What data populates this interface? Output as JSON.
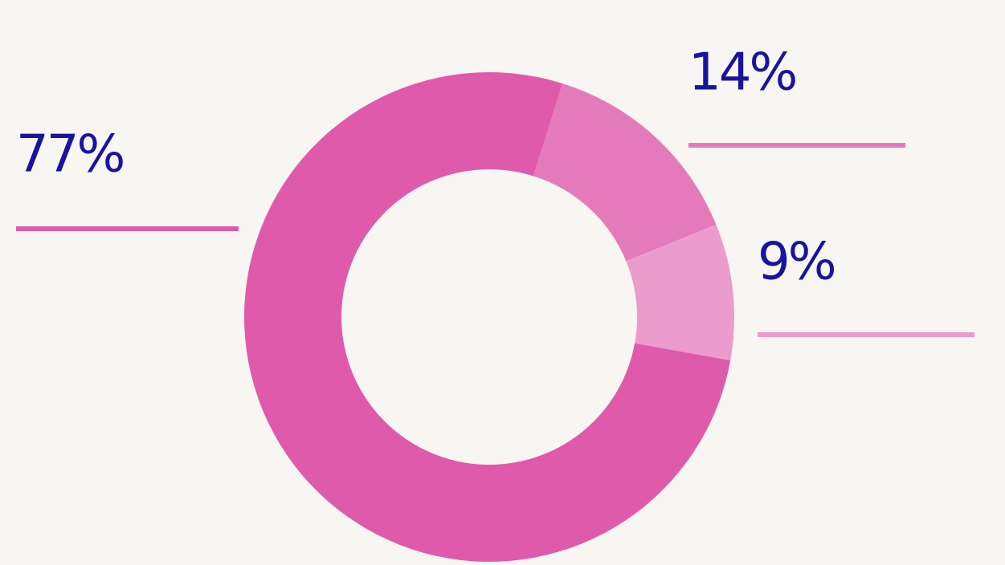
{
  "chart_data": {
    "type": "donut",
    "values": [
      77,
      14,
      9
    ],
    "value_labels": [
      "77%",
      "14%",
      "9%"
    ],
    "colors": [
      "#df5aab",
      "#e57aba",
      "#ec9bcd"
    ]
  }
}
